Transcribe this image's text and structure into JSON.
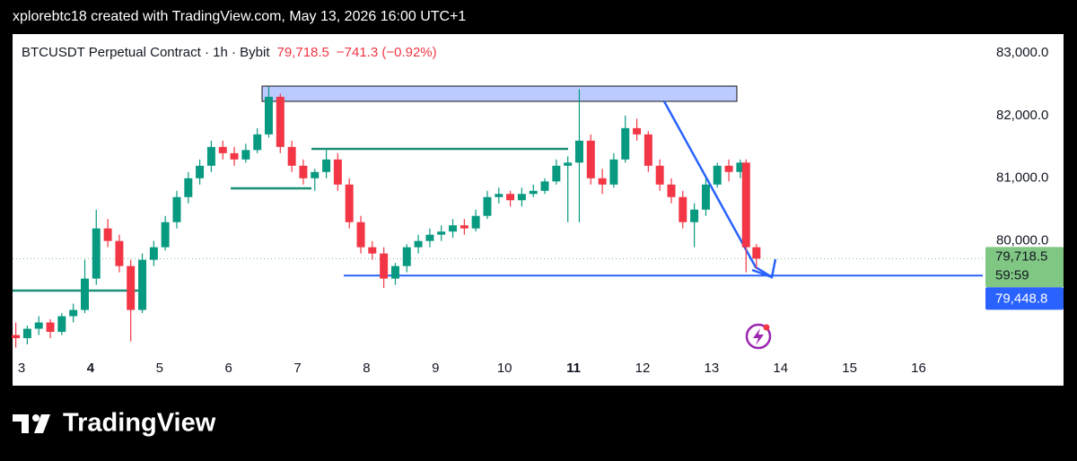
{
  "chart_data": {
    "type": "candlestick",
    "caption": "xplorebtc18 created with TradingView.com, May 13, 2026 16:00 UTC+1",
    "symbol": "BTCUSDT Perpetual Contract · 1h · Bybit",
    "last_price": "79,718.5",
    "change": "−741.3 (−0.92%)",
    "brand": "TradingView",
    "up_color": "#089981",
    "down_color": "#f23645",
    "x": [
      2.917,
      3.083,
      3.25,
      3.417,
      3.583,
      3.75,
      3.917,
      4.083,
      4.25,
      4.417,
      4.583,
      4.75,
      4.917,
      5.083,
      5.25,
      5.417,
      5.583,
      5.75,
      5.917,
      6.083,
      6.25,
      6.417,
      6.583,
      6.75,
      6.917,
      7.083,
      7.25,
      7.417,
      7.583,
      7.75,
      7.917,
      8.083,
      8.25,
      8.417,
      8.583,
      8.75,
      8.917,
      9.083,
      9.25,
      9.417,
      9.583,
      9.75,
      9.917,
      10.083,
      10.25,
      10.417,
      10.583,
      10.75,
      10.917,
      11.083,
      11.25,
      11.417,
      11.583,
      11.75,
      11.917,
      12.083,
      12.25,
      12.417,
      12.583,
      12.75,
      12.917,
      13.083,
      13.25,
      13.417,
      13.5,
      13.65
    ],
    "open": [
      78500,
      78450,
      78600,
      78700,
      78550,
      78800,
      78900,
      79400,
      80200,
      80000,
      79600,
      78900,
      79700,
      79900,
      80300,
      80700,
      81000,
      81200,
      81500,
      81400,
      81300,
      81450,
      81700,
      82300,
      81500,
      81200,
      81000,
      81100,
      81300,
      80900,
      80300,
      79900,
      79800,
      79400,
      79600,
      79900,
      80000,
      80100,
      80150,
      80250,
      80200,
      80400,
      80700,
      80750,
      80650,
      80750,
      80800,
      80950,
      81200,
      81250,
      81600,
      81000,
      80900,
      81300,
      81800,
      81700,
      81200,
      80900,
      80700,
      80300,
      80500,
      80900,
      81200,
      81100,
      81250,
      79900
    ],
    "high": [
      78700,
      78650,
      78800,
      78750,
      78850,
      79000,
      79700,
      80500,
      80350,
      80100,
      79700,
      79800,
      80000,
      80400,
      80800,
      81100,
      81300,
      81600,
      81600,
      81500,
      81550,
      81800,
      82460,
      82350,
      81600,
      81300,
      81150,
      81450,
      81400,
      81000,
      80400,
      80000,
      79900,
      79650,
      79950,
      80100,
      80200,
      80250,
      80350,
      80350,
      80500,
      80800,
      80850,
      80800,
      80850,
      80900,
      81000,
      81300,
      81350,
      82420,
      81700,
      81150,
      81400,
      82000,
      81950,
      81750,
      81300,
      81000,
      80800,
      80600,
      81000,
      81250,
      81300,
      81300,
      81300,
      79950
    ],
    "low": [
      78300,
      78350,
      78500,
      78450,
      78500,
      78700,
      78850,
      79300,
      79900,
      79500,
      78400,
      78850,
      79600,
      79850,
      80200,
      80600,
      80900,
      81100,
      81300,
      81200,
      81250,
      81400,
      81650,
      81400,
      81100,
      80900,
      80800,
      81000,
      80800,
      80200,
      79800,
      79700,
      79250,
      79300,
      79500,
      79800,
      79900,
      80000,
      80050,
      80100,
      80150,
      80350,
      80600,
      80550,
      80550,
      80700,
      80750,
      80900,
      80300,
      80300,
      80900,
      80750,
      80850,
      81250,
      81600,
      81100,
      80800,
      80600,
      80200,
      79900,
      80400,
      80850,
      80950,
      81000,
      79500,
      79560
    ],
    "close": [
      78450,
      78600,
      78700,
      78550,
      78800,
      78900,
      79400,
      80200,
      80000,
      79600,
      78900,
      79700,
      79900,
      80300,
      80700,
      81000,
      81200,
      81500,
      81400,
      81300,
      81450,
      81700,
      82300,
      81500,
      81200,
      81000,
      81100,
      81300,
      80900,
      80300,
      79900,
      79800,
      79400,
      79600,
      79900,
      80000,
      80100,
      80150,
      80250,
      80200,
      80400,
      80700,
      80750,
      80650,
      80750,
      80800,
      80950,
      81200,
      81250,
      81600,
      81000,
      80900,
      81300,
      81800,
      81700,
      81200,
      80900,
      80700,
      80300,
      80500,
      80900,
      81200,
      81100,
      81250,
      79900,
      79718.5
    ],
    "xlim": [
      2.87,
      16.93
    ],
    "xticks": [
      3,
      4,
      5,
      6,
      7,
      8,
      9,
      10,
      11,
      12,
      13,
      14,
      15,
      16
    ],
    "bold_xticks": [
      4,
      11
    ],
    "ylim": [
      78150,
      83300
    ],
    "yticks": [
      {
        "value": 83000,
        "label": "83,000.0"
      },
      {
        "value": 82000,
        "label": "82,000.0"
      },
      {
        "value": 81000,
        "label": "81,000.0"
      },
      {
        "value": 80000,
        "label": "80,000.0"
      }
    ],
    "price_labels": [
      {
        "value": 79718.5,
        "label": "79,718.5",
        "countdown": "59:59",
        "color": "#81c784"
      },
      {
        "value": 79448.8,
        "label": "79,448.8",
        "color": "#2962ff"
      }
    ]
  }
}
